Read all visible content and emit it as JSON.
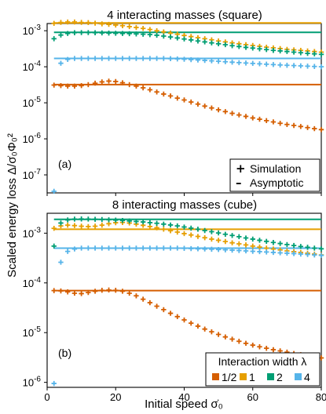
{
  "figure": {
    "ylabel": "Scaled energy loss  Δ/σ̇₀Φ₀²",
    "xlabel": "Initial speed  σ̇₀",
    "x_ticks": [
      "0",
      "20",
      "40",
      "60",
      "80"
    ]
  },
  "chart_data": [
    {
      "type": "scatter",
      "title": "4 interacting masses (square)",
      "panel_label": "(a)",
      "xlim": [
        0,
        80
      ],
      "ylim_log10": [
        -7.5,
        -2.8
      ],
      "y_scale": "log",
      "y_ticks": [
        "10-3",
        "10-4",
        "10-5",
        "10-6",
        "10-7"
      ],
      "legend": {
        "placement": "bottom-right",
        "items": [
          {
            "symbol": "+",
            "label": "Simulation"
          },
          {
            "symbol": "–",
            "label": "Asymptotic"
          }
        ]
      },
      "series": [
        {
          "name": "1/2",
          "color": "#d55e00",
          "asymptote": 3.2e-05,
          "x": [
            2,
            4,
            6,
            8,
            10,
            12,
            14,
            16,
            18,
            20,
            22,
            24,
            26,
            28,
            30,
            32,
            34,
            36,
            38,
            40,
            42,
            44,
            46,
            48,
            50,
            52,
            54,
            56,
            58,
            60,
            62,
            64,
            66,
            68,
            70,
            72,
            74,
            76,
            78,
            80
          ],
          "y": [
            3.1e-05,
            3e-05,
            2.9e-05,
            2.9e-05,
            3e-05,
            3.2e-05,
            3.5e-05,
            3.8e-05,
            4e-05,
            3.9e-05,
            3.6e-05,
            3.2e-05,
            2.9e-05,
            2.6e-05,
            2.3e-05,
            2e-05,
            1.75e-05,
            1.55e-05,
            1.35e-05,
            1.2e-05,
            1.05e-05,
            9.2e-06,
            8.1e-06,
            7.2e-06,
            6.4e-06,
            5.7e-06,
            5.1e-06,
            4.6e-06,
            4.2e-06,
            3.8e-06,
            3.5e-06,
            3.2e-06,
            2.95e-06,
            2.7e-06,
            2.5e-06,
            2.35e-06,
            2.2e-06,
            2.05e-06,
            1.92e-06,
            1.8e-06
          ]
        },
        {
          "name": "1",
          "color": "#e69f00",
          "asymptote": 0.00165,
          "x": [
            2,
            4,
            6,
            8,
            10,
            12,
            14,
            16,
            18,
            20,
            22,
            24,
            26,
            28,
            30,
            32,
            34,
            36,
            38,
            40,
            42,
            44,
            46,
            48,
            50,
            52,
            54,
            56,
            58,
            60,
            62,
            64,
            66,
            68,
            70,
            72,
            74,
            76,
            78,
            80
          ],
          "y": [
            0.0016,
            0.0017,
            0.00175,
            0.00175,
            0.0017,
            0.00168,
            0.00162,
            0.00155,
            0.0015,
            0.00144,
            0.00138,
            0.0013,
            0.00123,
            0.00116,
            0.00108,
            0.001,
            0.00093,
            0.00086,
            0.0008,
            0.00074,
            0.00069,
            0.00064,
            0.0006,
            0.00056,
            0.00052,
            0.00049,
            0.00046,
            0.000435,
            0.00041,
            0.00039,
            0.00037,
            0.00035,
            0.000335,
            0.00032,
            0.000305,
            0.000295,
            0.000285,
            0.000275,
            0.000265,
            0.000255
          ]
        },
        {
          "name": "2",
          "color": "#009e73",
          "asymptote": 0.0009,
          "x": [
            2,
            4,
            6,
            8,
            10,
            12,
            14,
            16,
            18,
            20,
            22,
            24,
            26,
            28,
            30,
            32,
            34,
            36,
            38,
            40,
            42,
            44,
            46,
            48,
            50,
            52,
            54,
            56,
            58,
            60,
            62,
            64,
            66,
            68,
            70,
            72,
            74,
            76,
            78,
            80
          ],
          "y": [
            0.0006,
            0.00076,
            0.00084,
            0.00088,
            0.00089,
            0.00089,
            0.00088,
            0.00087,
            0.00086,
            0.00085,
            0.00084,
            0.00083,
            0.000815,
            0.0008,
            0.00078,
            0.00075,
            0.00071,
            0.00067,
            0.00063,
            0.00059,
            0.000555,
            0.00052,
            0.00049,
            0.00046,
            0.000435,
            0.00041,
            0.000385,
            0.000365,
            0.000345,
            0.00033,
            0.000315,
            0.0003,
            0.000285,
            0.000275,
            0.000265,
            0.000255,
            0.000245,
            0.000235,
            0.000228,
            0.00022
          ]
        },
        {
          "name": "4",
          "color": "#56b4e9",
          "asymptote": 0.00017,
          "x": [
            2,
            4,
            6,
            8,
            10,
            12,
            14,
            16,
            18,
            20,
            22,
            24,
            26,
            28,
            30,
            32,
            34,
            36,
            38,
            40,
            42,
            44,
            46,
            48,
            50,
            52,
            54,
            56,
            58,
            60,
            62,
            64,
            66,
            68,
            70,
            72,
            74,
            76,
            78,
            80
          ],
          "y": [
            3.5e-08,
            0.000125,
            0.00016,
            0.00017,
            0.00017,
            0.00017,
            0.00017,
            0.00017,
            0.00017,
            0.00017,
            0.00017,
            0.00017,
            0.00017,
            0.00017,
            0.00017,
            0.00017,
            0.00017,
            0.000168,
            0.000165,
            0.000162,
            0.000158,
            0.000154,
            0.00015,
            0.000146,
            0.000142,
            0.000138,
            0.000134,
            0.00013,
            0.000127,
            0.000124,
            0.000121,
            0.000118,
            0.000115,
            0.000112,
            0.00011,
            0.000108,
            0.000106,
            0.000104,
            0.000102,
            0.0001
          ]
        }
      ]
    },
    {
      "type": "scatter",
      "title": "8 interacting masses (cube)",
      "panel_label": "(b)",
      "xlim": [
        0,
        80
      ],
      "ylim_log10": [
        -6.1,
        -2.6
      ],
      "y_scale": "log",
      "y_ticks": [
        "10-3",
        "10-4",
        "10-5",
        "10-6"
      ],
      "legend": {
        "placement": "bottom-right",
        "title": "Interaction width λ",
        "items": [
          {
            "label": "1/2",
            "color": "#d55e00"
          },
          {
            "label": "1",
            "color": "#e69f00"
          },
          {
            "label": "2",
            "color": "#009e73"
          },
          {
            "label": "4",
            "color": "#56b4e9"
          }
        ]
      },
      "series": [
        {
          "name": "1/2",
          "color": "#d55e00",
          "asymptote": 7e-05,
          "x": [
            2,
            4,
            6,
            8,
            10,
            12,
            14,
            16,
            18,
            20,
            22,
            24,
            26,
            28,
            30,
            32,
            34,
            36,
            38,
            40,
            42,
            44,
            46,
            48,
            50,
            52,
            54,
            56,
            58,
            60,
            62,
            64,
            66,
            68,
            70,
            72,
            74,
            76,
            78,
            80
          ],
          "y": [
            7e-05,
            6.9e-05,
            6.6e-05,
            6.2e-05,
            6.1e-05,
            6.4e-05,
            6.8e-05,
            7.1e-05,
            7.2e-05,
            7.1e-05,
            6.8e-05,
            6.2e-05,
            5.5e-05,
            4.7e-05,
            4e-05,
            3.4e-05,
            2.9e-05,
            2.45e-05,
            2.1e-05,
            1.8e-05,
            1.55e-05,
            1.35e-05,
            1.18e-05,
            1.04e-05,
            9.2e-06,
            8.2e-06,
            7.4e-06,
            6.7e-06,
            6.1e-06,
            5.6e-06,
            5.2e-06,
            4.85e-06,
            4.55e-06,
            4.3e-06,
            4.05e-06,
            3.8e-06,
            3.6e-06,
            3.4e-06,
            3.25e-06,
            3.1e-06
          ]
        },
        {
          "name": "1",
          "color": "#e69f00",
          "asymptote": 0.0012,
          "x": [
            2,
            4,
            6,
            8,
            10,
            12,
            14,
            16,
            18,
            20,
            22,
            24,
            26,
            28,
            30,
            32,
            34,
            36,
            38,
            40,
            42,
            44,
            46,
            48,
            50,
            52,
            54,
            56,
            58,
            60,
            62,
            64,
            66,
            68,
            70,
            72,
            74,
            76,
            78,
            80
          ],
          "y": [
            0.00125,
            0.0014,
            0.00145,
            0.00142,
            0.00138,
            0.00136,
            0.00138,
            0.00145,
            0.00155,
            0.00162,
            0.00164,
            0.0016,
            0.00152,
            0.00144,
            0.00136,
            0.00128,
            0.0012,
            0.00112,
            0.00105,
            0.00098,
            0.00092,
            0.00086,
            0.00081,
            0.00076,
            0.00072,
            0.00068,
            0.00064,
            0.00061,
            0.00058,
            0.00055,
            0.000525,
            0.0005,
            0.00048,
            0.00046,
            0.00044,
            0.000425,
            0.00041,
            0.000395,
            0.00038,
            0.000365
          ]
        },
        {
          "name": "2",
          "color": "#009e73",
          "asymptote": 0.0019,
          "x": [
            2,
            4,
            6,
            8,
            10,
            12,
            14,
            16,
            18,
            20,
            22,
            24,
            26,
            28,
            30,
            32,
            34,
            36,
            38,
            40,
            42,
            44,
            46,
            48,
            50,
            52,
            54,
            56,
            58,
            60,
            62,
            64,
            66,
            68,
            70,
            72,
            74,
            76,
            78,
            80
          ],
          "y": [
            0.00055,
            0.0016,
            0.00185,
            0.00192,
            0.00193,
            0.00192,
            0.0019,
            0.00188,
            0.00186,
            0.00183,
            0.0018,
            0.00176,
            0.00172,
            0.00168,
            0.00163,
            0.00158,
            0.00152,
            0.00146,
            0.0014,
            0.00133,
            0.00126,
            0.0012,
            0.00113,
            0.00107,
            0.00101,
            0.00095,
            0.0009,
            0.00085,
            0.0008,
            0.00076,
            0.00072,
            0.000685,
            0.00065,
            0.00062,
            0.00059,
            0.000565,
            0.00054,
            0.00052,
            0.0005,
            0.000485
          ]
        },
        {
          "name": "4",
          "color": "#56b4e9",
          "asymptote": 0.0005,
          "x": [
            2,
            4,
            6,
            8,
            10,
            12,
            14,
            16,
            18,
            20,
            22,
            24,
            26,
            28,
            30,
            32,
            34,
            36,
            38,
            40,
            42,
            44,
            46,
            48,
            50,
            52,
            54,
            56,
            58,
            60,
            62,
            64,
            66,
            68,
            70,
            72,
            74,
            76,
            78,
            80
          ],
          "y": [
            9.5e-07,
            0.00026,
            0.00043,
            0.00048,
            0.0005,
            0.0005,
            0.0005,
            0.0005,
            0.0005,
            0.0005,
            0.0005,
            0.0005,
            0.0005,
            0.0005,
            0.0005,
            0.0005,
            0.0005,
            0.0005,
            0.0005,
            0.000495,
            0.00049,
            0.000485,
            0.00048,
            0.000475,
            0.00047,
            0.000462,
            0.000455,
            0.000448,
            0.00044,
            0.000432,
            0.000425,
            0.000418,
            0.00041,
            0.000402,
            0.000395,
            0.000388,
            0.00038,
            0.000373,
            0.000365,
            0.000358
          ]
        }
      ]
    }
  ]
}
